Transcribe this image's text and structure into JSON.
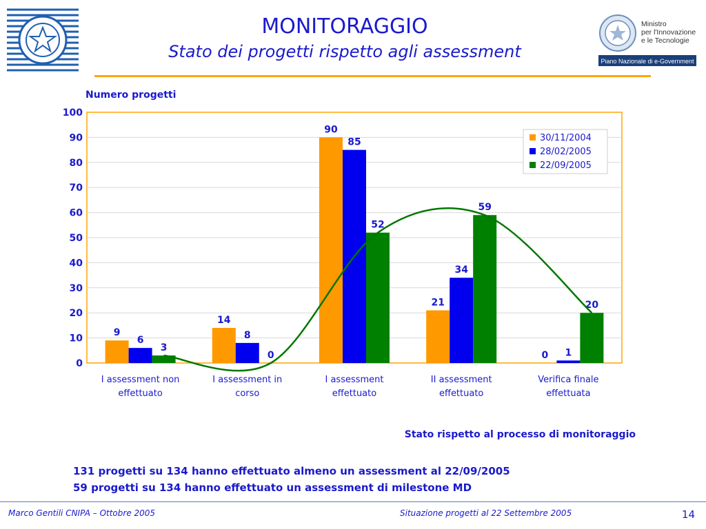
{
  "slide": {
    "title": "MONITORAGGIO",
    "subtitle": "Stato dei progetti rispetto agli assessment",
    "logo_right_lines": [
      "Ministro",
      "per l'Innovazione",
      "e le Tecnologie"
    ],
    "logo_right_banner": "Piano Nazionale di e-Government",
    "note": "Stato rispetto al processo di monitoraggio",
    "summary": [
      "131 progetti su 134 hanno effettuato almeno un assessment al 22/09/2005",
      "59 progetti su 134 hanno effettuato un assessment di milestone MD"
    ],
    "footer_left": "Marco Gentili CNIPA – Ottobre 2005",
    "footer_center": "Situazione progetti al 22 Settembre 2005",
    "page_number": "14"
  },
  "colors": {
    "title": "#1a1acc",
    "accent_rule": "#ffa500",
    "plot_border": "#ffa500",
    "trend_line": "#007700"
  },
  "chart_data": {
    "type": "bar",
    "ylabel": "Numero progetti",
    "ylim": [
      0,
      100
    ],
    "yticks": [
      0,
      10,
      20,
      30,
      40,
      50,
      60,
      70,
      80,
      90,
      100
    ],
    "grid": true,
    "legend_position": "top-right",
    "categories": [
      [
        "I assessment non",
        "effettuato"
      ],
      [
        "I assessment in",
        "corso"
      ],
      [
        "I assessment",
        "effettuato"
      ],
      [
        "II assessment",
        "effettuato"
      ],
      [
        "Verifica finale",
        "effettuata"
      ]
    ],
    "series": [
      {
        "name": "30/11/2004",
        "color": "#ff9900",
        "values": [
          9,
          14,
          90,
          21,
          0
        ]
      },
      {
        "name": "28/02/2005",
        "color": "#0000ee",
        "values": [
          6,
          8,
          85,
          34,
          1
        ]
      },
      {
        "name": "22/09/2005",
        "color": "#008000",
        "values": [
          3,
          0,
          52,
          59,
          20
        ]
      }
    ],
    "trend": "smoothed curve through 22/09/2005 values"
  }
}
